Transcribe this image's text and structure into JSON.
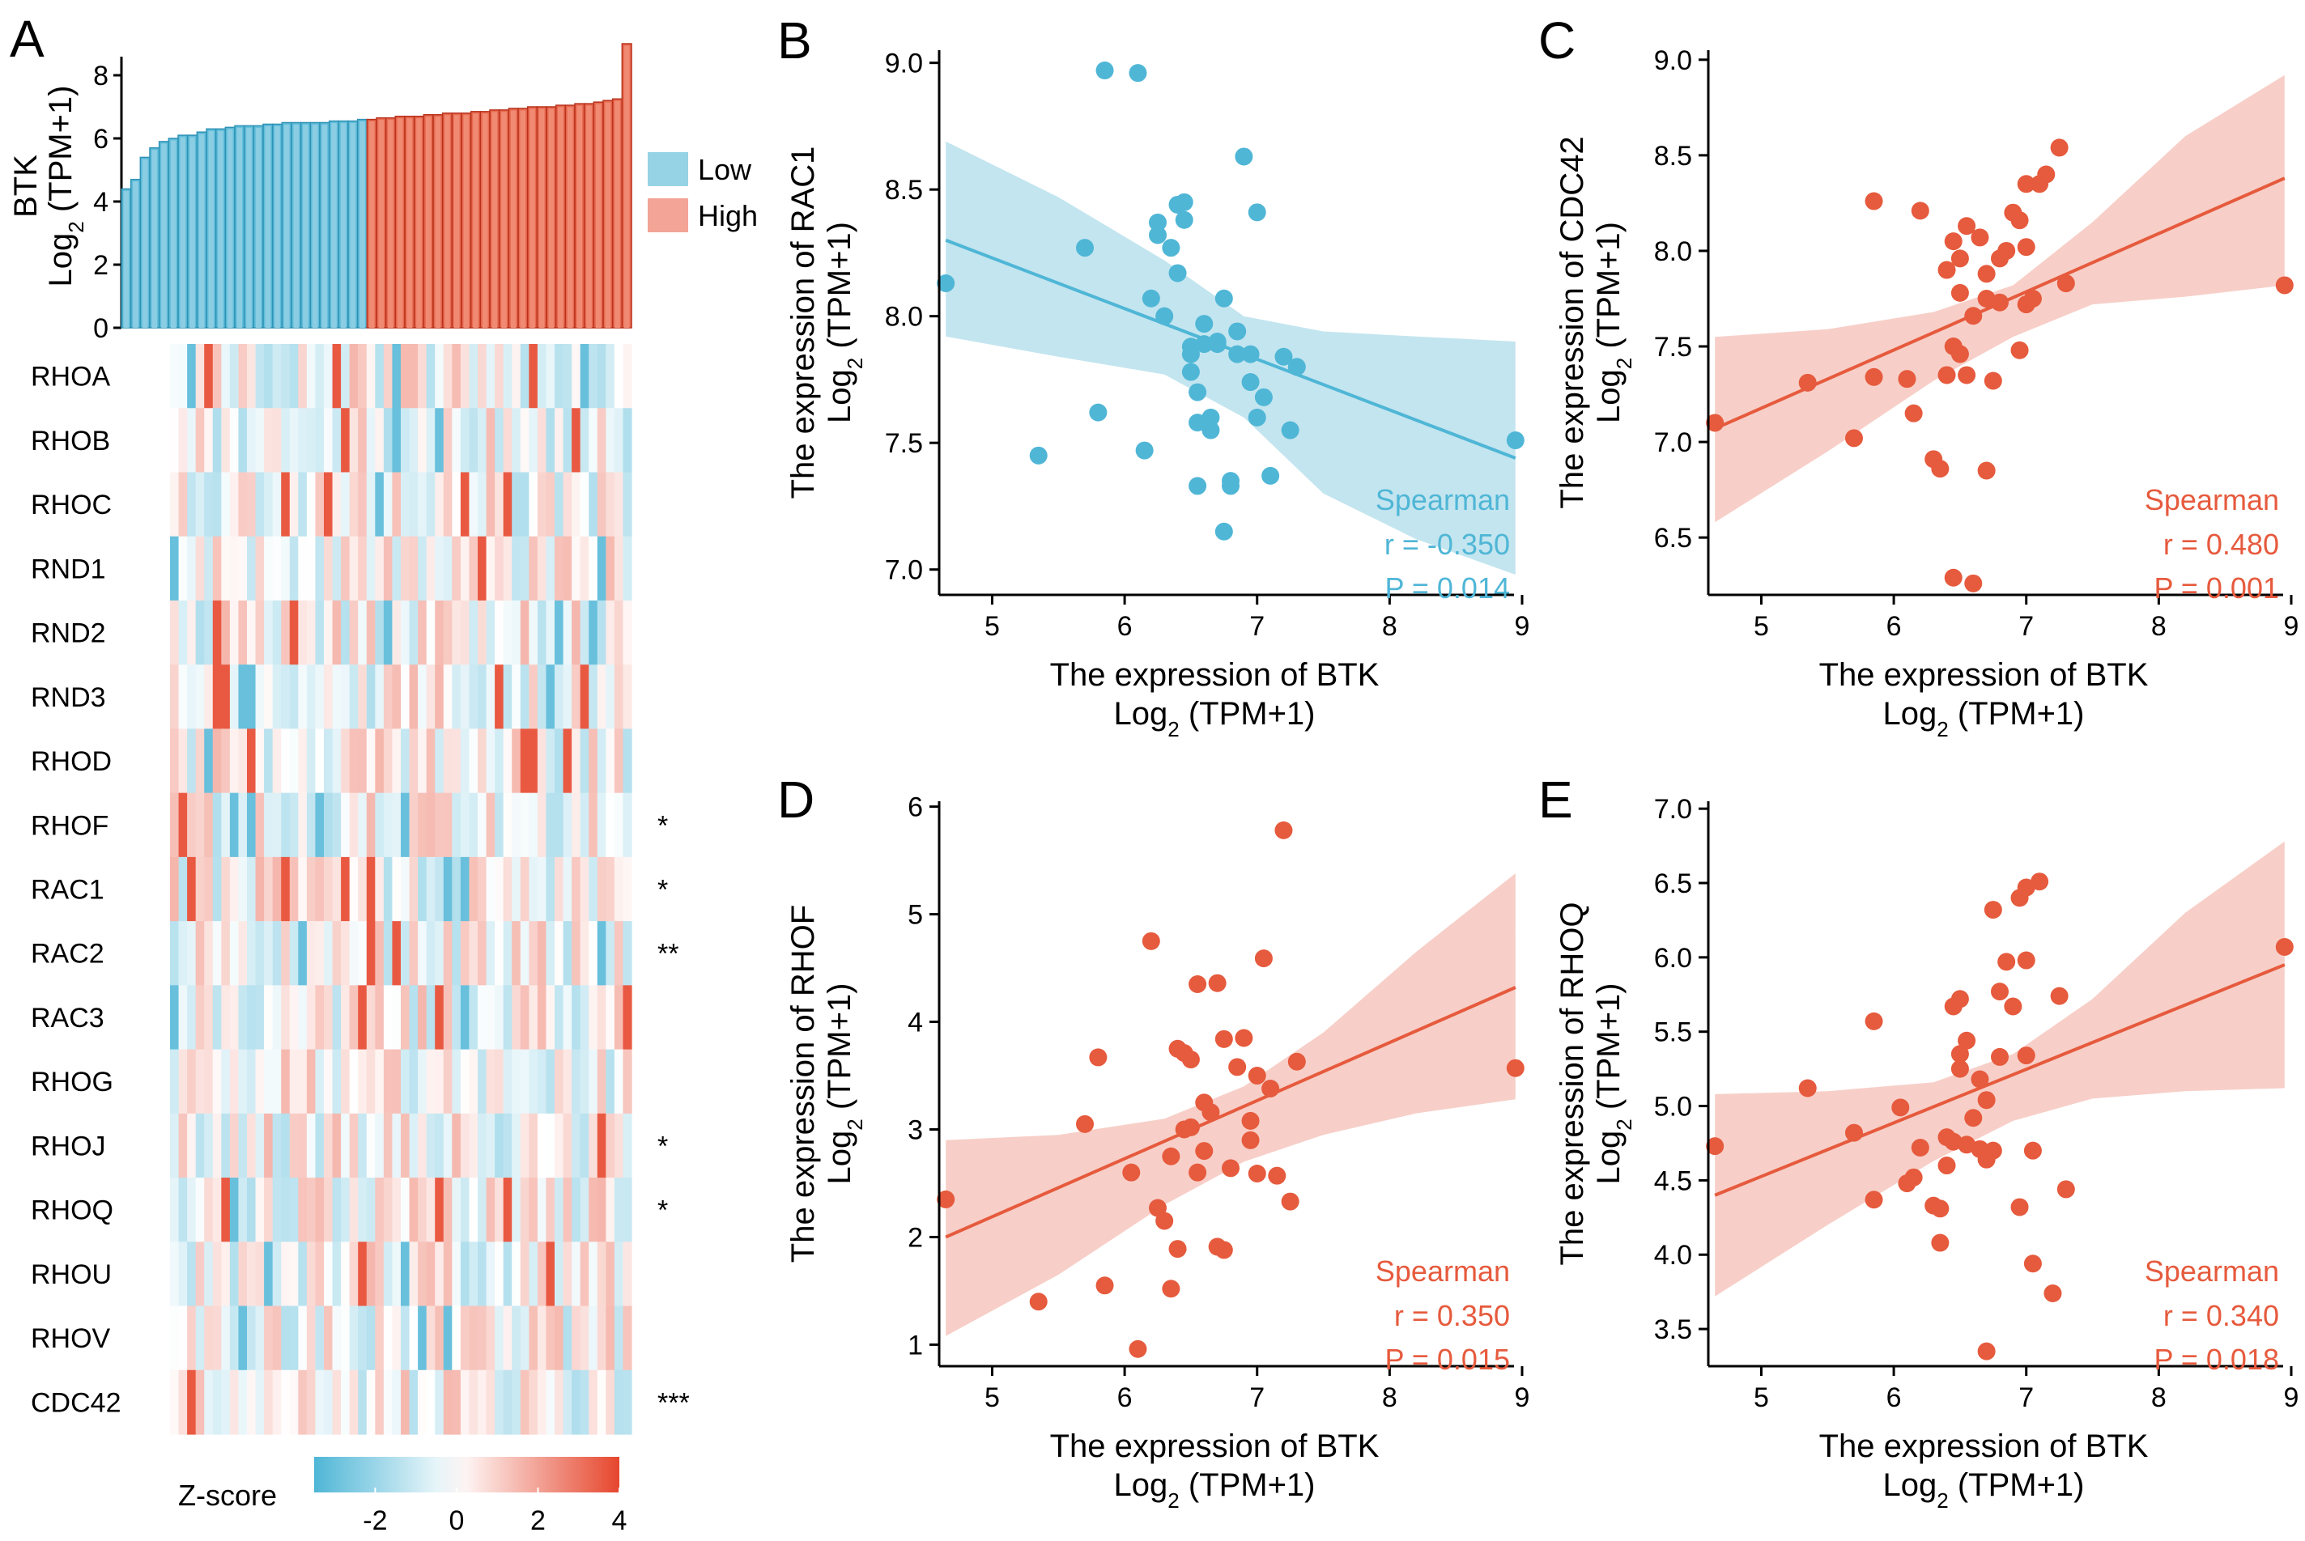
{
  "colors": {
    "low": "#4FB6D6",
    "high": "#E65A3D",
    "low_legend": "#96D3E4",
    "high_legend": "#F3A496",
    "low_band": "#B8E0EC",
    "high_band": "#F6C7BE"
  },
  "chart_data": [
    {
      "panel": "A",
      "type": "bar+heatmap",
      "bar": {
        "ylabel_line1": "BTK",
        "ylabel_line2": "Log",
        "ylabel_sub": "2",
        "ylabel_rest": " (TPM+1)",
        "yticks": [
          "0",
          "2",
          "4",
          "6",
          "8"
        ],
        "ylim": [
          0,
          9
        ],
        "low_values": [
          4.4,
          4.7,
          5.4,
          5.7,
          5.9,
          6.0,
          6.1,
          6.1,
          6.2,
          6.3,
          6.3,
          6.35,
          6.4,
          6.4,
          6.4,
          6.45,
          6.45,
          6.5,
          6.5,
          6.5,
          6.5,
          6.5,
          6.55,
          6.55,
          6.55,
          6.6
        ],
        "high_values": [
          6.6,
          6.65,
          6.65,
          6.7,
          6.7,
          6.7,
          6.75,
          6.75,
          6.8,
          6.8,
          6.8,
          6.85,
          6.85,
          6.9,
          6.9,
          6.95,
          6.95,
          7.0,
          7.0,
          7.0,
          7.05,
          7.05,
          7.1,
          7.1,
          7.15,
          7.2,
          7.25,
          9.0
        ],
        "legend": [
          {
            "label": "Low"
          },
          {
            "label": "High"
          }
        ]
      },
      "heatmap": {
        "genes": [
          "RHOA",
          "RHOB",
          "RHOC",
          "RND1",
          "RND2",
          "RND3",
          "RHOD",
          "RHOF",
          "RAC1",
          "RAC2",
          "RAC3",
          "RHOG",
          "RHOJ",
          "RHOQ",
          "RHOU",
          "RHOV",
          "CDC42"
        ],
        "significance": [
          "",
          "",
          "",
          "",
          "",
          "",
          "",
          "*",
          "*",
          "**",
          "",
          "",
          "*",
          "*",
          "",
          "",
          "***"
        ],
        "colorbar": {
          "label": "Z-score",
          "ticks": [
            "-2",
            "0",
            "2",
            "4"
          ],
          "range": [
            -3.5,
            4
          ]
        }
      }
    },
    {
      "panel": "B",
      "type": "scatter",
      "color": "low",
      "x": [
        4.65,
        5.35,
        5.7,
        5.8,
        5.85,
        6.1,
        6.15,
        6.2,
        6.25,
        6.25,
        6.3,
        6.35,
        6.4,
        6.4,
        6.45,
        6.45,
        6.5,
        6.5,
        6.5,
        6.55,
        6.55,
        6.55,
        6.6,
        6.6,
        6.65,
        6.65,
        6.7,
        6.7,
        6.75,
        6.75,
        6.8,
        6.8,
        6.85,
        6.85,
        6.9,
        6.95,
        6.95,
        7.0,
        7.0,
        7.05,
        7.1,
        7.2,
        7.25,
        7.3,
        8.95
      ],
      "y": [
        8.13,
        7.45,
        8.27,
        7.62,
        8.97,
        8.96,
        7.47,
        8.07,
        8.32,
        8.37,
        8.0,
        8.27,
        8.44,
        8.17,
        8.38,
        8.45,
        7.88,
        7.85,
        7.78,
        7.33,
        7.58,
        7.7,
        7.89,
        7.97,
        7.6,
        7.55,
        7.89,
        7.9,
        7.15,
        8.07,
        7.33,
        7.35,
        7.94,
        7.85,
        8.63,
        7.74,
        7.85,
        8.41,
        7.6,
        7.68,
        7.37,
        7.84,
        7.55,
        7.8,
        7.51
      ],
      "fit": {
        "x": [
          4.65,
          8.95
        ],
        "y": [
          8.3,
          7.44
        ]
      },
      "band": {
        "x": [
          4.65,
          5.5,
          6.3,
          6.9,
          7.5,
          8.2,
          8.95
        ],
        "lower": [
          7.92,
          7.84,
          7.77,
          7.6,
          7.3,
          7.12,
          6.98
        ],
        "upper": [
          8.69,
          8.47,
          8.22,
          8.0,
          7.94,
          7.92,
          7.9
        ]
      },
      "xlim": [
        4.6,
        9.0
      ],
      "ylim": [
        6.9,
        9.05
      ],
      "xticks": [
        5,
        6,
        7,
        8,
        9
      ],
      "yticks": [
        7.0,
        7.5,
        8.0,
        8.5,
        9.0
      ],
      "ytick_labels": [
        "7.0",
        "7.5",
        "8.0",
        "8.5",
        "9.0"
      ],
      "xlabel_line1": "The expression of BTK",
      "ylabel_line1": "The expression of RAC1",
      "sub_label": {
        "pre": "Log",
        "sub": "2",
        "post": " (TPM+1)"
      },
      "stats": [
        "Spearman",
        "r = -0.350",
        "P = 0.014"
      ]
    },
    {
      "panel": "C",
      "type": "scatter",
      "color": "high",
      "x": [
        4.65,
        5.35,
        5.7,
        5.85,
        5.85,
        6.1,
        6.15,
        6.2,
        6.3,
        6.35,
        6.4,
        6.4,
        6.45,
        6.45,
        6.45,
        6.5,
        6.5,
        6.5,
        6.55,
        6.55,
        6.6,
        6.6,
        6.65,
        6.7,
        6.7,
        6.7,
        6.75,
        6.8,
        6.8,
        6.85,
        6.9,
        6.95,
        6.95,
        7.0,
        7.0,
        7.0,
        7.05,
        7.1,
        7.15,
        7.25,
        7.3,
        8.95
      ],
      "y": [
        7.1,
        7.31,
        7.02,
        7.34,
        8.26,
        7.33,
        7.15,
        8.21,
        6.91,
        6.86,
        7.35,
        7.9,
        7.5,
        8.05,
        6.29,
        7.96,
        7.78,
        7.46,
        8.13,
        7.35,
        6.26,
        7.66,
        8.07,
        7.88,
        7.75,
        6.85,
        7.32,
        7.73,
        7.96,
        8.0,
        8.2,
        8.16,
        7.48,
        8.35,
        7.72,
        8.02,
        7.75,
        8.35,
        8.4,
        8.54,
        7.83,
        7.82
      ],
      "fit": {
        "x": [
          4.65,
          8.95
        ],
        "y": [
          7.07,
          8.38
        ]
      },
      "band": {
        "x": [
          4.65,
          5.5,
          6.3,
          6.9,
          7.5,
          8.2,
          8.95
        ],
        "lower": [
          6.58,
          6.95,
          7.32,
          7.55,
          7.72,
          7.76,
          7.82
        ],
        "upper": [
          7.55,
          7.59,
          7.68,
          7.82,
          8.15,
          8.6,
          8.92
        ]
      },
      "xlim": [
        4.6,
        9.0
      ],
      "ylim": [
        6.2,
        9.05
      ],
      "xticks": [
        5,
        6,
        7,
        8,
        9
      ],
      "yticks": [
        6.5,
        7.0,
        7.5,
        8.0,
        8.5,
        9.0
      ],
      "ytick_labels": [
        "6.5",
        "7.0",
        "7.5",
        "8.0",
        "8.5",
        "9.0"
      ],
      "xlabel_line1": "The expression of BTK",
      "ylabel_line1": "The expression of CDC42",
      "sub_label": {
        "pre": "Log",
        "sub": "2",
        "post": " (TPM+1)"
      },
      "stats": [
        "Spearman",
        "r = 0.480",
        "P = 0.001"
      ]
    },
    {
      "panel": "D",
      "type": "scatter",
      "color": "high",
      "x": [
        4.65,
        5.35,
        5.7,
        5.8,
        5.85,
        6.05,
        6.1,
        6.2,
        6.25,
        6.3,
        6.35,
        6.35,
        6.4,
        6.4,
        6.45,
        6.45,
        6.5,
        6.5,
        6.55,
        6.55,
        6.6,
        6.6,
        6.65,
        6.7,
        6.7,
        6.75,
        6.75,
        6.8,
        6.85,
        6.9,
        6.95,
        6.95,
        7.0,
        7.0,
        7.05,
        7.1,
        7.15,
        7.2,
        7.25,
        7.3,
        8.95
      ],
      "y": [
        2.35,
        1.4,
        3.05,
        3.67,
        1.55,
        2.6,
        0.96,
        4.75,
        2.27,
        2.15,
        1.52,
        2.75,
        1.89,
        3.75,
        3.0,
        3.71,
        3.65,
        3.02,
        2.6,
        4.35,
        3.25,
        2.8,
        3.16,
        4.36,
        1.91,
        3.84,
        1.88,
        2.64,
        3.58,
        3.85,
        3.08,
        2.9,
        2.59,
        3.5,
        4.59,
        3.38,
        2.57,
        5.78,
        2.33,
        3.63,
        3.57
      ],
      "fit": {
        "x": [
          4.65,
          8.95
        ],
        "y": [
          2.0,
          4.32
        ]
      },
      "band": {
        "x": [
          4.65,
          5.5,
          6.3,
          6.9,
          7.5,
          8.2,
          8.95
        ],
        "lower": [
          1.08,
          1.65,
          2.3,
          2.7,
          2.95,
          3.15,
          3.28
        ],
        "upper": [
          2.9,
          2.95,
          3.1,
          3.4,
          3.9,
          4.65,
          5.38
        ]
      },
      "xlim": [
        4.6,
        9.0
      ],
      "ylim": [
        0.8,
        6.05
      ],
      "xticks": [
        5,
        6,
        7,
        8,
        9
      ],
      "yticks": [
        1,
        2,
        3,
        4,
        5,
        6
      ],
      "ytick_labels": [
        "1",
        "2",
        "3",
        "4",
        "5",
        "6"
      ],
      "xlabel_line1": "The expression of BTK",
      "ylabel_line1": "The expression of RHOF",
      "sub_label": {
        "pre": "Log",
        "sub": "2",
        "post": " (TPM+1)"
      },
      "stats": [
        "Spearman",
        "r = 0.350",
        "P = 0.015"
      ]
    },
    {
      "panel": "E",
      "type": "scatter",
      "color": "high",
      "x": [
        4.65,
        5.35,
        5.7,
        5.85,
        5.85,
        6.05,
        6.1,
        6.15,
        6.2,
        6.3,
        6.35,
        6.35,
        6.4,
        6.4,
        6.45,
        6.45,
        6.5,
        6.5,
        6.5,
        6.55,
        6.55,
        6.6,
        6.65,
        6.65,
        6.7,
        6.7,
        6.7,
        6.75,
        6.75,
        6.8,
        6.8,
        6.85,
        6.9,
        6.95,
        6.95,
        7.0,
        7.0,
        7.0,
        7.05,
        7.05,
        7.1,
        7.2,
        7.25,
        7.3,
        8.95
      ],
      "y": [
        4.73,
        5.12,
        4.82,
        4.37,
        5.57,
        4.99,
        4.48,
        4.52,
        4.72,
        4.33,
        4.31,
        4.08,
        4.79,
        4.6,
        5.67,
        4.76,
        5.72,
        5.25,
        5.35,
        4.74,
        5.44,
        4.92,
        5.18,
        4.71,
        5.04,
        3.35,
        4.64,
        4.7,
        6.32,
        5.77,
        5.33,
        5.97,
        5.67,
        6.4,
        4.32,
        6.47,
        5.34,
        5.98,
        4.7,
        3.94,
        6.51,
        3.74,
        5.74,
        4.44,
        6.07
      ],
      "fit": {
        "x": [
          4.65,
          8.95
        ],
        "y": [
          4.4,
          5.95
        ]
      },
      "band": {
        "x": [
          4.65,
          5.5,
          6.3,
          6.9,
          7.5,
          8.2,
          8.95
        ],
        "lower": [
          3.72,
          4.2,
          4.63,
          4.9,
          5.05,
          5.1,
          5.12
        ],
        "upper": [
          5.08,
          5.1,
          5.16,
          5.35,
          5.72,
          6.3,
          6.78
        ]
      },
      "xlim": [
        4.6,
        9.0
      ],
      "ylim": [
        3.25,
        7.05
      ],
      "xticks": [
        5,
        6,
        7,
        8,
        9
      ],
      "yticks": [
        3.5,
        4.0,
        4.5,
        5.0,
        5.5,
        6.0,
        6.5,
        7.0
      ],
      "ytick_labels": [
        "3.5",
        "4.0",
        "4.5",
        "5.0",
        "5.5",
        "6.0",
        "6.5",
        "7.0"
      ],
      "xlabel_line1": "The expression of BTK",
      "ylabel_line1": "The expression of RHOQ",
      "sub_label": {
        "pre": "Log",
        "sub": "2",
        "post": " (TPM+1)"
      },
      "stats": [
        "Spearman",
        "r = 0.340",
        "P = 0.018"
      ]
    }
  ]
}
